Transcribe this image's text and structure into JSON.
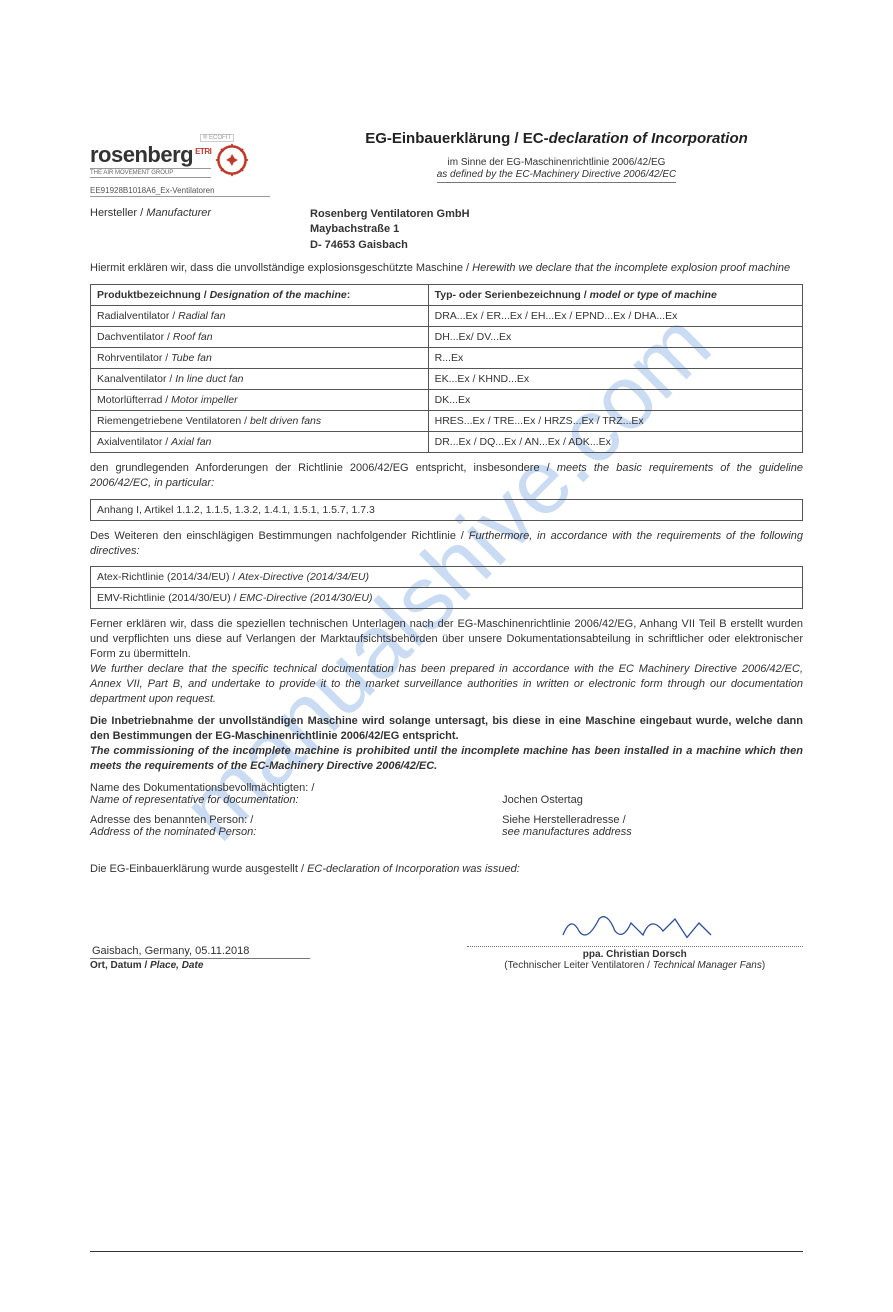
{
  "watermark": "manualshive.com",
  "logo": {
    "top_tag": "® ECOFIT",
    "etri": "ETRI",
    "brand": "rosenberg",
    "subline": "THE AIR MOVEMENT GROUP",
    "gear_color": "#c0392b"
  },
  "doc_ref": "EE91928B1018A6_Ex-Ventilatoren",
  "title": {
    "de": "EG-Einbauerklärung",
    "sep": " / ",
    "en_prefix": "EC-",
    "en_ital": "declaration of Incorporation"
  },
  "subtitle": {
    "de": "im Sinne der EG-Maschinenrichtlinie 2006/42/EG",
    "en": "as defined by the EC-Machinery Directive 2006/42/EC"
  },
  "manufacturer_label": {
    "de": "Hersteller / ",
    "en": "Manufacturer"
  },
  "manufacturer": {
    "name": "Rosenberg Ventilatoren GmbH",
    "street": "Maybachstraße 1",
    "city": "D- 74653 Gaisbach"
  },
  "intro": {
    "de": "Hiermit erklären wir, dass die unvollständige explosionsgeschützte Maschine / ",
    "en": "Herewith we declare that the incomplete explosion proof machine"
  },
  "product_table": {
    "headers": {
      "left_de": "Produktbezeichnung / ",
      "left_en": "Designation of the machine",
      "right_de": "Typ- oder Serienbezeichnung / ",
      "right_en": "model or type of machine"
    },
    "rows": [
      {
        "de": "Radialventilator / ",
        "en": "Radial fan",
        "types": "DRA...Ex / ER...Ex / EH...Ex / EPND...Ex / DHA...Ex"
      },
      {
        "de": "Dachventilator / ",
        "en": "Roof fan",
        "types": "DH...Ex/ DV...Ex"
      },
      {
        "de": "Rohrventilator / ",
        "en": "Tube fan",
        "types": "R...Ex"
      },
      {
        "de": "Kanalventilator / ",
        "en": "In line duct fan",
        "types": "EK...Ex / KHND...Ex"
      },
      {
        "de": "Motorlüfterrad / ",
        "en": "Motor impeller",
        "types": "DK...Ex"
      },
      {
        "de": "Riemengetriebene Ventilatoren / ",
        "en": "belt driven fans",
        "types": "HRES...Ex / TRE...Ex / HRZS...Ex / TRZ...Ex"
      },
      {
        "de": "Axialventilator / ",
        "en": "Axial fan",
        "types": "DR...Ex / DQ...Ex / AN...Ex / ADK...Ex"
      }
    ]
  },
  "requirements": {
    "de": "den grundlegenden Anforderungen der Richtlinie 2006/42/EG entspricht, insbesondere / ",
    "en": "meets the basic requirements of the guideline 2006/42/EC, in particular:"
  },
  "annex": "Anhang I, Artikel 1.1.2, 1.1.5, 1.3.2, 1.4.1, 1.5.1, 1.5.7, 1.7.3",
  "furthermore": {
    "de": "Des Weiteren den einschlägigen Bestimmungen nachfolgender Richtlinie / ",
    "en": "Furthermore, in accordance with the requirements of the following directives:"
  },
  "directives": [
    {
      "de": "Atex-Richtlinie (2014/34/EU) / ",
      "en": "Atex-Directive (2014/34/EU)"
    },
    {
      "de": "EMV-Richtlinie (2014/30/EU) / ",
      "en": "EMC-Directive (2014/30/EU)"
    }
  ],
  "tech_docs": {
    "de": "Ferner erklären wir, dass die speziellen technischen Unterlagen nach der EG-Maschinenrichtlinie 2006/42/EG, Anhang VII Teil B erstellt wurden und verpflichten uns diese auf Verlangen der Marktaufsichtsbehörden über unsere Dokumentationsabteilung in schriftlicher oder elektronischer Form zu übermitteln.",
    "en": "We further declare that the specific technical documentation has been prepared in accordance with the EC Machinery Directive 2006/42/EC, Annex VII, Part B, and undertake to provide it to the market surveillance authorities in written or electronic form through our documentation department upon request."
  },
  "commissioning": {
    "de": "Die Inbetriebnahme der unvollständigen Maschine wird solange untersagt, bis diese in eine Maschine eingebaut wurde, welche dann den Bestimmungen der EG-Maschinenrichtlinie 2006/42/EG entspricht.",
    "en": "The commissioning of the incomplete machine is prohibited until the incomplete machine has been installed in a machine which then meets the requirements of the EC-Machinery Directive 2006/42/EC."
  },
  "doc_rep": {
    "label_de": "Name des Dokumentationsbevollmächtigten: /",
    "label_en": "Name of representative for documentation:",
    "name": "Jochen Ostertag"
  },
  "addr_rep": {
    "label_de": "Adresse des benannten Person: /",
    "label_en": "Address of the nominated Person:",
    "val_de": "Siehe Herstelleradresse /",
    "val_en": "see manufactures address"
  },
  "issued": {
    "de": "Die EG-Einbauerklärung wurde ausgestellt / ",
    "en": "EC-declaration of Incorporation was issued:"
  },
  "place_date": {
    "value": "Gaisbach, Germany, 05.11.2018",
    "label_de": "Ort, Datum / ",
    "label_en": "Place, Date"
  },
  "signatory": {
    "name": "ppa. Christian Dorsch",
    "role_de": "(Technischer Leiter Ventilatoren / ",
    "role_en": "Technical Manager Fans",
    "role_close": ")",
    "sig_color": "#2a4e9b"
  }
}
